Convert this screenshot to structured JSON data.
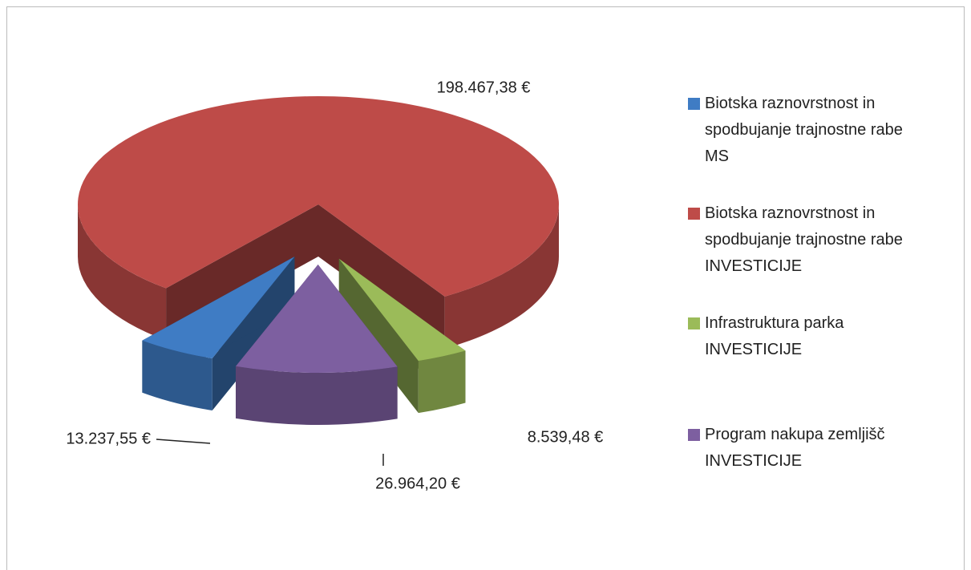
{
  "chart_data": {
    "type": "pie",
    "categories": [
      "Biotska raznovrstnost in spodbujanje trajnostne rabe MS",
      "Biotska raznovrstnost in spodbujanje trajnostne rabe INVESTICIJE",
      "Infrastruktura parka INVESTICIJE",
      "Program nakupa zemljišč INVESTICIJE"
    ],
    "values": [
      13237.55,
      198467.38,
      8539.48,
      26964.2
    ],
    "value_labels": [
      "13.237,55 €",
      "198.467,38 €",
      "8.539,48 €",
      "26.964,20 €"
    ],
    "colors": [
      "#3f7cc4",
      "#be4b48",
      "#9bbb59",
      "#7d5fa0"
    ],
    "legend": "right"
  }
}
